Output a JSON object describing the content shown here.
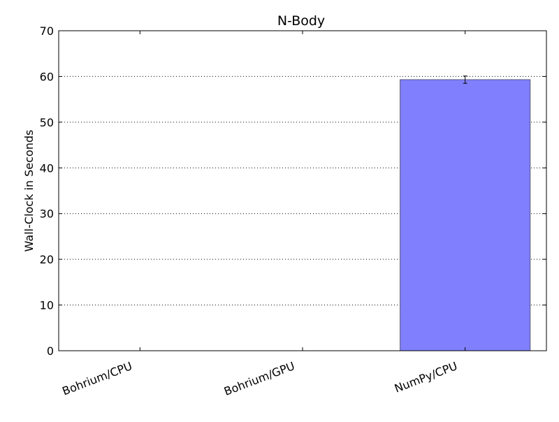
{
  "chart_data": {
    "type": "bar",
    "title": "N-Body",
    "xlabel": "",
    "ylabel": "Wall-Clock in Seconds",
    "categories": [
      "Bohrium/CPU",
      "Bohrium/GPU",
      "NumPy/CPU"
    ],
    "values": [
      0,
      0,
      59.3
    ],
    "errors": [
      0,
      0,
      0.8
    ],
    "ylim": [
      0,
      70
    ],
    "yticks": [
      0,
      10,
      20,
      30,
      40,
      50,
      60,
      70
    ],
    "grid": "y-dotted",
    "bar_color": "#8080ff",
    "bar_edge_color": "#555577"
  }
}
